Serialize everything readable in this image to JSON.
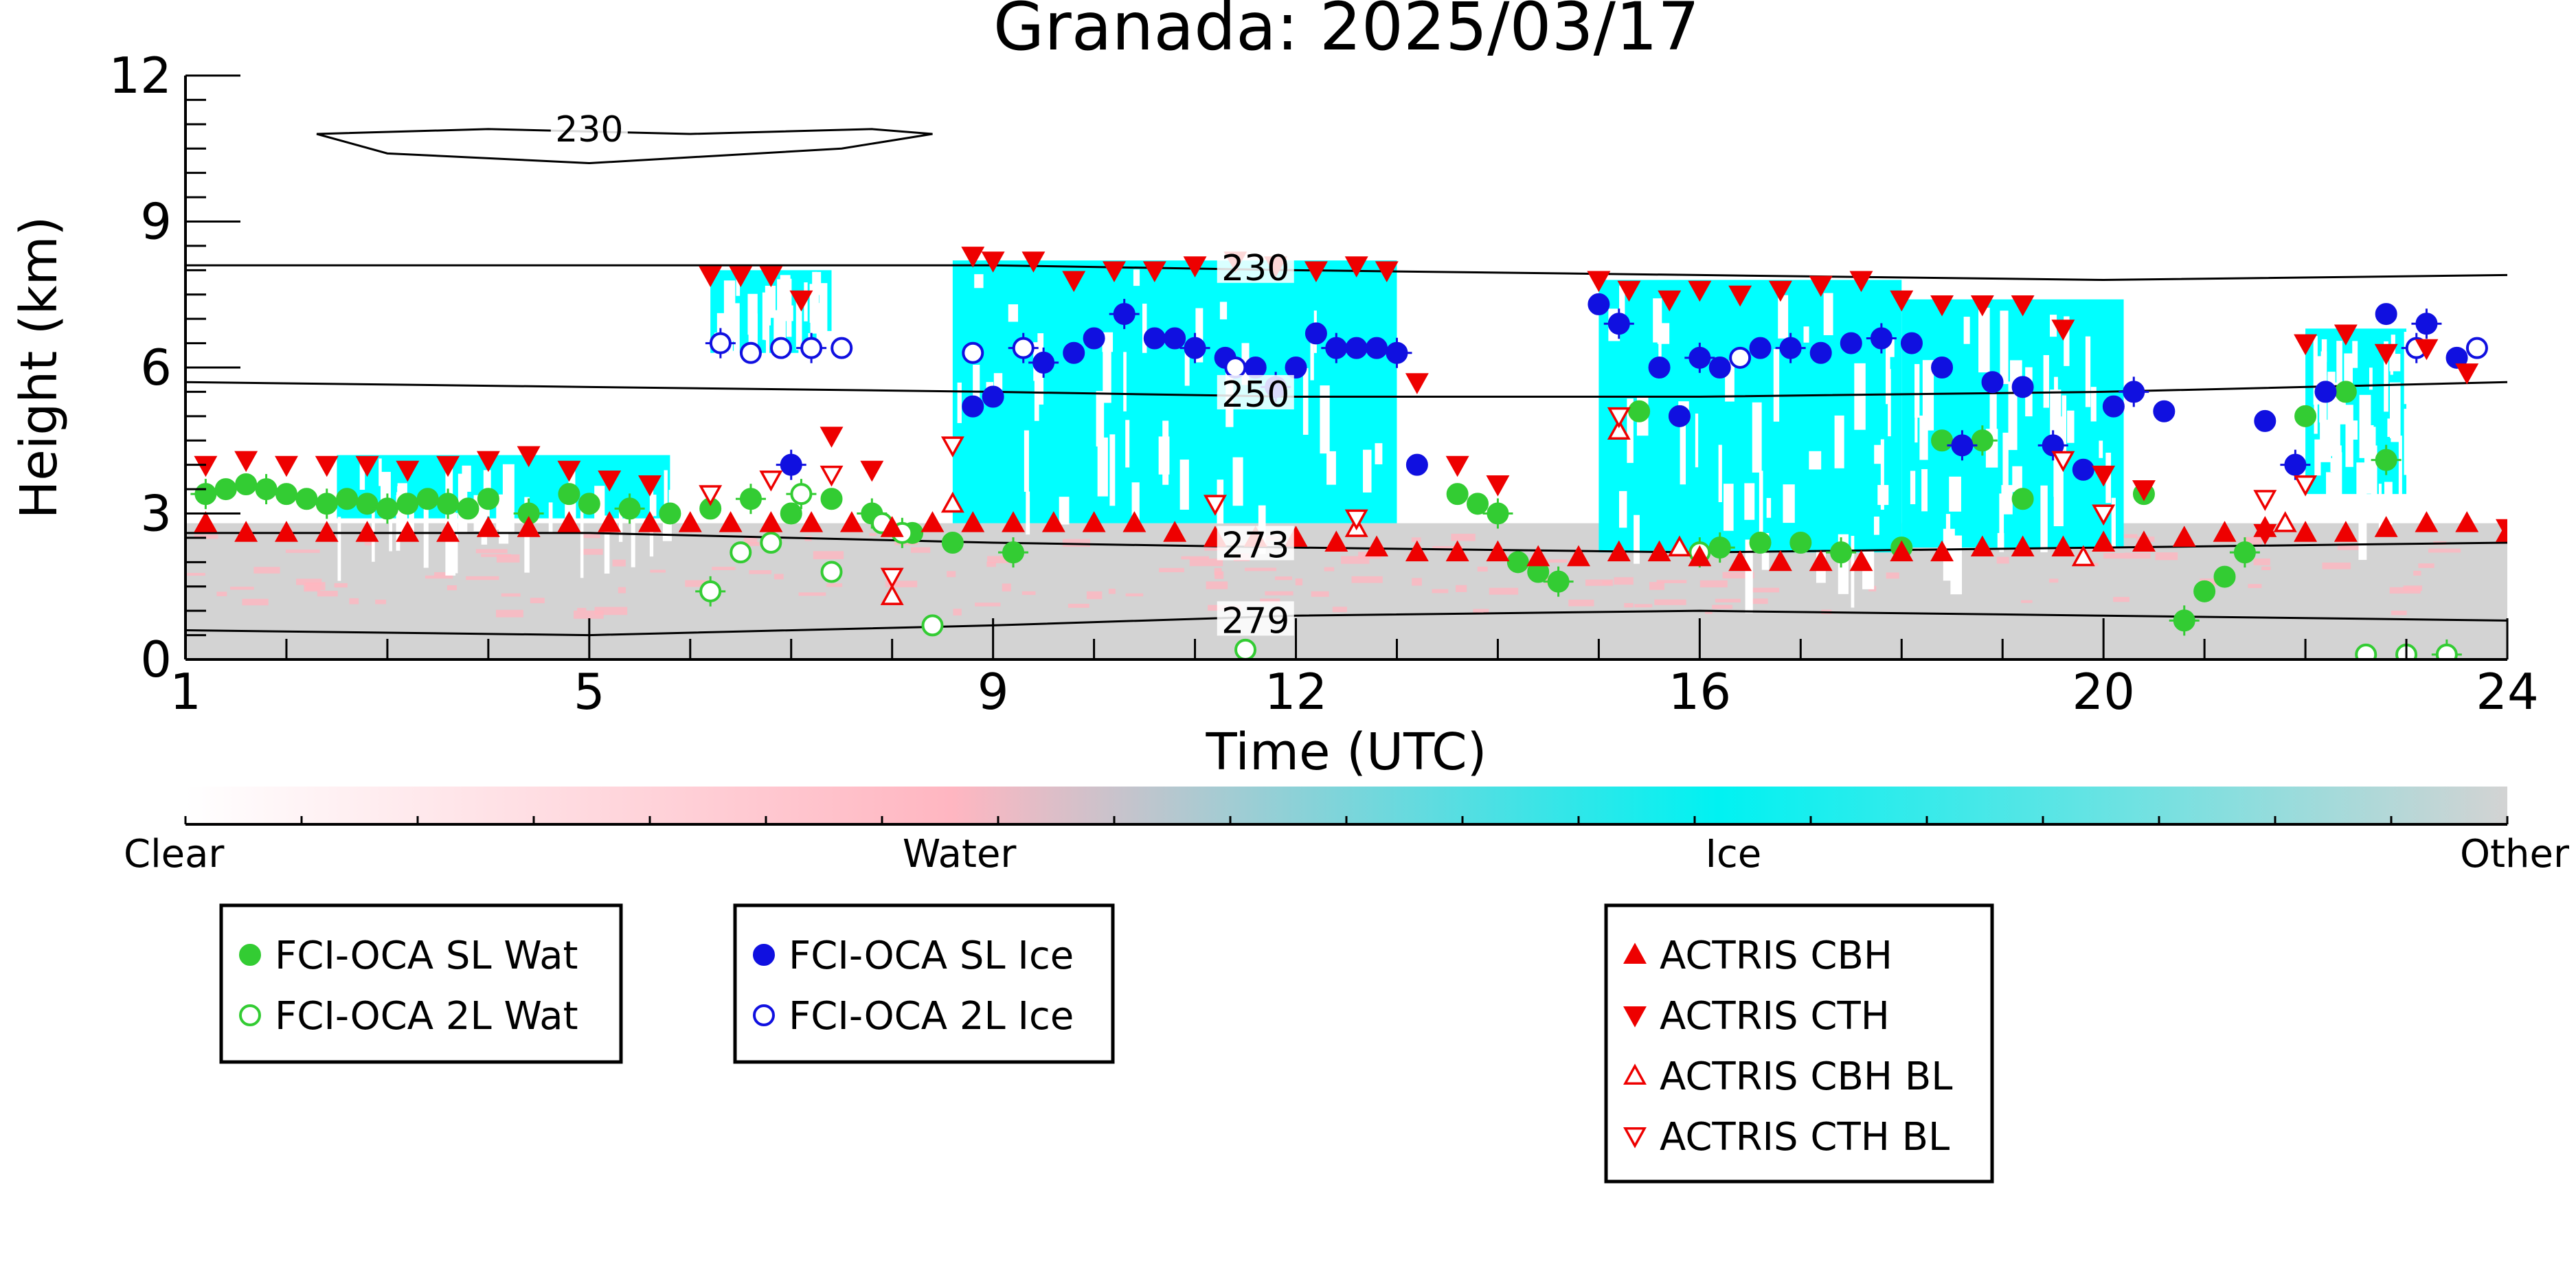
{
  "chart_data": {
    "type": "scatter",
    "title": "Granada: 2025/03/17",
    "xlabel": "Time (UTC)",
    "ylabel": "Height (km)",
    "xlim": [
      1,
      24
    ],
    "ylim": [
      0,
      12
    ],
    "x_ticks": [
      1,
      5,
      9,
      12,
      16,
      20,
      24
    ],
    "y_ticks": [
      0,
      3,
      6,
      9,
      12
    ],
    "grid": false,
    "background_classification": {
      "classes": [
        "Clear",
        "Water",
        "Ice",
        "Other"
      ],
      "colors": {
        "Clear": "#ffffff",
        "Water": "#ffb6c1",
        "Ice": "#00ffff",
        "Other": "#d3d3d3"
      },
      "ice_blocks": [
        {
          "x": [
            6.2,
            7.4
          ],
          "y": [
            6.3,
            8.0
          ]
        },
        {
          "x": [
            8.6,
            13.0
          ],
          "y": [
            2.8,
            8.2
          ]
        },
        {
          "x": [
            2.5,
            5.8
          ],
          "y": [
            2.9,
            4.2
          ]
        },
        {
          "x": [
            15.0,
            18.0
          ],
          "y": [
            2.2,
            7.8
          ]
        },
        {
          "x": [
            18.0,
            20.2
          ],
          "y": [
            2.3,
            7.4
          ]
        },
        {
          "x": [
            22.0,
            23.0
          ],
          "y": [
            3.4,
            6.8
          ]
        }
      ],
      "other_layer": {
        "x": [
          1,
          24
        ],
        "y": [
          0,
          2.8
        ]
      }
    },
    "contours": [
      {
        "label": "230",
        "x": [
          1,
          5,
          9,
          12,
          16,
          20,
          24
        ],
        "y": [
          8.1,
          8.1,
          8.1,
          8.0,
          7.9,
          7.8,
          7.9
        ]
      },
      {
        "label": "250",
        "x": [
          1,
          5,
          9,
          12,
          16,
          20,
          24
        ],
        "y": [
          5.7,
          5.6,
          5.5,
          5.4,
          5.4,
          5.5,
          5.7
        ]
      },
      {
        "label": "273",
        "x": [
          1,
          5,
          9,
          12,
          16,
          20,
          24
        ],
        "y": [
          2.6,
          2.6,
          2.4,
          2.3,
          2.2,
          2.3,
          2.4
        ]
      },
      {
        "label": "279",
        "x": [
          1,
          5,
          9,
          12,
          16,
          20,
          24
        ],
        "y": [
          0.6,
          0.5,
          0.7,
          0.9,
          1.0,
          0.9,
          0.8
        ]
      },
      {
        "label": "230",
        "closed": true,
        "x": [
          2.3,
          4.0,
          6.0,
          7.8,
          8.4,
          7.5,
          5.0,
          3.0,
          2.3
        ],
        "y": [
          10.8,
          10.9,
          10.8,
          10.9,
          10.8,
          10.5,
          10.2,
          10.4,
          10.8
        ]
      }
    ],
    "series": [
      {
        "name": "FCI-OCA SL Wat",
        "color": "#33cc33",
        "marker": "filled-circle",
        "x": [
          1.2,
          1.4,
          1.6,
          1.8,
          2.0,
          2.2,
          2.4,
          2.6,
          2.8,
          3.0,
          3.2,
          3.4,
          3.6,
          3.8,
          4.0,
          4.4,
          4.8,
          5.0,
          5.4,
          5.8,
          6.2,
          6.6,
          7.0,
          7.4,
          7.8,
          8.2,
          8.6,
          9.2,
          13.6,
          13.8,
          14.0,
          14.2,
          14.4,
          14.6,
          15.4,
          15.8,
          16.2,
          16.6,
          17.0,
          17.4,
          18.0,
          18.4,
          18.8,
          19.2,
          20.4,
          20.8,
          21.0,
          21.2,
          21.4,
          22.0,
          22.4,
          22.8
        ],
        "y": [
          3.4,
          3.5,
          3.6,
          3.5,
          3.4,
          3.3,
          3.2,
          3.3,
          3.2,
          3.1,
          3.2,
          3.3,
          3.2,
          3.1,
          3.3,
          3.0,
          3.4,
          3.2,
          3.1,
          3.0,
          3.1,
          3.3,
          3.0,
          3.3,
          3.0,
          2.6,
          2.4,
          2.2,
          3.4,
          3.2,
          3.0,
          2.0,
          1.8,
          1.6,
          5.1,
          5.0,
          2.3,
          2.4,
          2.4,
          2.2,
          2.3,
          4.5,
          4.5,
          3.3,
          3.4,
          0.8,
          1.4,
          1.7,
          2.2,
          5.0,
          5.5,
          4.1
        ]
      },
      {
        "name": "FCI-OCA 2L Wat",
        "color": "#33cc33",
        "marker": "open-circle",
        "x": [
          6.2,
          6.5,
          6.8,
          7.1,
          7.4,
          7.9,
          8.1,
          8.4,
          11.5,
          16.0,
          22.6,
          23.0,
          23.4
        ],
        "y": [
          1.4,
          2.2,
          2.4,
          3.4,
          1.8,
          2.8,
          2.6,
          0.7,
          0.2,
          2.2,
          0.1,
          0.1,
          0.1
        ]
      },
      {
        "name": "FCI-OCA SL Ice",
        "color": "#1010e0",
        "marker": "filled-circle",
        "x": [
          7.0,
          8.8,
          9.0,
          9.5,
          9.8,
          10.0,
          10.3,
          10.6,
          10.8,
          11.0,
          11.3,
          11.6,
          11.8,
          12.0,
          12.2,
          12.4,
          12.6,
          12.8,
          13.0,
          13.2,
          15.0,
          15.2,
          15.6,
          15.8,
          16.0,
          16.2,
          16.6,
          16.9,
          17.2,
          17.5,
          17.8,
          18.1,
          18.4,
          18.6,
          18.9,
          19.2,
          19.5,
          19.8,
          20.1,
          20.3,
          20.6,
          21.6,
          21.9,
          22.2,
          22.8,
          23.2,
          23.5
        ],
        "y": [
          4.0,
          5.2,
          5.4,
          6.1,
          6.3,
          6.6,
          7.1,
          6.6,
          6.6,
          6.4,
          6.2,
          6.0,
          5.6,
          6.0,
          6.7,
          6.4,
          6.4,
          6.4,
          6.3,
          4.0,
          7.3,
          6.9,
          6.0,
          5.0,
          6.2,
          6.0,
          6.4,
          6.4,
          6.3,
          6.5,
          6.6,
          6.5,
          6.0,
          4.4,
          5.7,
          5.6,
          4.4,
          3.9,
          5.2,
          5.5,
          5.1,
          4.9,
          4.0,
          5.5,
          7.1,
          6.9,
          6.2
        ]
      },
      {
        "name": "FCI-OCA 2L Ice",
        "color": "#1010e0",
        "marker": "open-circle",
        "x": [
          6.3,
          6.6,
          6.9,
          7.2,
          7.5,
          8.8,
          9.3,
          11.4,
          16.4,
          23.1,
          23.7
        ],
        "y": [
          6.5,
          6.3,
          6.4,
          6.4,
          6.4,
          6.3,
          6.4,
          6.0,
          6.2,
          6.4,
          6.4
        ]
      },
      {
        "name": "ACTRIS CBH",
        "color": "#ee0000",
        "marker": "triangle-up",
        "x": [
          1.2,
          1.6,
          2.0,
          2.4,
          2.8,
          3.2,
          3.6,
          4.0,
          4.4,
          4.8,
          5.2,
          5.6,
          6.0,
          6.4,
          6.8,
          7.2,
          7.6,
          8.0,
          8.4,
          8.8,
          9.2,
          9.6,
          10.0,
          10.4,
          10.8,
          11.2,
          11.6,
          12.0,
          12.4,
          12.8,
          13.2,
          13.6,
          14.0,
          14.4,
          14.8,
          15.2,
          15.6,
          16.0,
          16.4,
          16.8,
          17.2,
          17.6,
          18.0,
          18.4,
          18.8,
          19.2,
          19.6,
          20.0,
          20.4,
          20.8,
          21.2,
          21.6,
          22.0,
          22.4,
          22.8,
          23.2,
          23.6,
          24.0
        ],
        "y": [
          2.8,
          2.6,
          2.6,
          2.6,
          2.6,
          2.6,
          2.6,
          2.7,
          2.7,
          2.8,
          2.8,
          2.8,
          2.8,
          2.8,
          2.8,
          2.8,
          2.8,
          2.7,
          2.8,
          2.8,
          2.8,
          2.8,
          2.8,
          2.8,
          2.6,
          2.5,
          2.5,
          2.5,
          2.4,
          2.3,
          2.2,
          2.2,
          2.2,
          2.1,
          2.1,
          2.2,
          2.2,
          2.1,
          2.0,
          2.0,
          2.0,
          2.0,
          2.2,
          2.2,
          2.3,
          2.3,
          2.3,
          2.4,
          2.4,
          2.5,
          2.6,
          2.7,
          2.6,
          2.6,
          2.7,
          2.8,
          2.8,
          2.6
        ]
      },
      {
        "name": "ACTRIS CTH",
        "color": "#ee0000",
        "marker": "triangle-down",
        "x": [
          1.2,
          1.6,
          2.0,
          2.4,
          2.8,
          3.2,
          3.6,
          4.0,
          4.4,
          4.8,
          5.2,
          5.6,
          6.2,
          6.5,
          6.8,
          7.1,
          7.4,
          7.8,
          8.8,
          9.0,
          9.4,
          9.8,
          10.2,
          10.6,
          11.0,
          11.4,
          11.8,
          12.2,
          12.6,
          12.9,
          13.2,
          13.6,
          14.0,
          15.0,
          15.3,
          15.7,
          16.0,
          16.4,
          16.8,
          17.2,
          17.6,
          18.0,
          18.4,
          18.8,
          19.2,
          19.6,
          20.0,
          20.4,
          21.6,
          22.0,
          22.4,
          22.8,
          23.2,
          23.6,
          24.0
        ],
        "y": [
          4.0,
          4.1,
          4.0,
          4.0,
          4.0,
          3.9,
          4.0,
          4.1,
          4.2,
          3.9,
          3.7,
          3.6,
          7.9,
          7.9,
          7.9,
          7.4,
          4.6,
          3.9,
          8.3,
          8.2,
          8.2,
          7.8,
          8.0,
          8.0,
          8.1,
          8.2,
          8.1,
          8.0,
          8.1,
          8.0,
          5.7,
          4.0,
          3.6,
          7.8,
          7.6,
          7.4,
          7.6,
          7.5,
          7.6,
          7.7,
          7.8,
          7.4,
          7.3,
          7.3,
          7.3,
          6.8,
          3.8,
          3.5,
          2.6,
          6.5,
          6.7,
          6.3,
          6.4,
          5.9,
          2.7
        ]
      },
      {
        "name": "ACTRIS CBH BL",
        "color": "#ee0000",
        "marker": "open-triangle-up",
        "x": [
          8.0,
          8.6,
          12.6,
          15.2,
          15.8,
          19.8,
          21.8
        ],
        "y": [
          1.3,
          3.2,
          2.7,
          4.7,
          2.3,
          2.1,
          2.8
        ]
      },
      {
        "name": "ACTRIS CTH BL",
        "color": "#ee0000",
        "marker": "open-triangle-down",
        "x": [
          6.2,
          6.8,
          7.4,
          8.0,
          8.6,
          11.2,
          12.6,
          15.2,
          19.6,
          20.0,
          21.6,
          22.0
        ],
        "y": [
          3.4,
          3.7,
          3.8,
          1.7,
          4.4,
          3.2,
          2.9,
          5.0,
          4.1,
          3.0,
          3.3,
          3.6
        ]
      }
    ],
    "colorbar": {
      "labels": [
        "Clear",
        "Water",
        "Ice",
        "Other"
      ],
      "gradient_stops": [
        "#ffffff",
        "#ffb6c1",
        "#00f2f2",
        "#d3d3d3"
      ]
    },
    "legends": [
      {
        "entries": [
          "FCI-OCA SL Wat",
          "FCI-OCA 2L Wat"
        ]
      },
      {
        "entries": [
          "FCI-OCA SL Ice",
          "FCI-OCA 2L Ice"
        ]
      },
      {
        "entries": [
          "ACTRIS CBH",
          "ACTRIS CTH",
          "ACTRIS CBH BL",
          "ACTRIS CTH BL"
        ]
      }
    ]
  }
}
